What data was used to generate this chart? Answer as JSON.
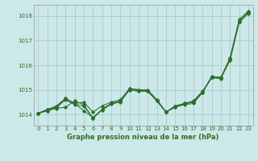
{
  "title": "Graphe pression niveau de la mer (hPa)",
  "bg_color": "#cce8e8",
  "grid_color": "#aacccc",
  "line_color": "#2d6e2d",
  "xlim": [
    -0.5,
    23.5
  ],
  "ylim": [
    1013.55,
    1018.45
  ],
  "yticks": [
    1014,
    1015,
    1016,
    1017,
    1018
  ],
  "xticks": [
    0,
    1,
    2,
    3,
    4,
    5,
    6,
    7,
    8,
    9,
    10,
    11,
    12,
    13,
    14,
    15,
    16,
    17,
    18,
    19,
    20,
    21,
    22,
    23
  ],
  "series": [
    [
      1014.05,
      1014.15,
      1014.25,
      1014.3,
      1014.55,
      1014.4,
      1013.85,
      1014.2,
      1014.45,
      1014.5,
      1015.05,
      1015.0,
      1015.0,
      1014.6,
      1014.1,
      1014.3,
      1014.4,
      1014.45,
      1014.9,
      1015.55,
      1015.5,
      1016.3,
      1017.85,
      1018.2
    ],
    [
      1014.05,
      1014.2,
      1014.3,
      1014.65,
      1014.45,
      1014.5,
      1014.1,
      1014.35,
      1014.5,
      1014.6,
      1015.05,
      1015.0,
      1014.95,
      1014.55,
      1014.1,
      1014.35,
      1014.45,
      1014.55,
      1014.95,
      1015.5,
      1015.5,
      1016.2,
      1017.75,
      1018.15
    ],
    [
      1014.05,
      1014.2,
      1014.35,
      1014.65,
      1014.45,
      1014.15,
      1013.88,
      1014.2,
      1014.45,
      1014.55,
      1015.0,
      1014.95,
      1014.95,
      1014.55,
      1014.1,
      1014.3,
      1014.45,
      1014.5,
      1014.9,
      1015.5,
      1015.45,
      1016.25,
      1017.75,
      1018.1
    ],
    [
      1014.05,
      1014.15,
      1014.28,
      1014.6,
      1014.4,
      1014.35,
      1013.85,
      1014.18,
      1014.42,
      1014.52,
      1015.0,
      1014.95,
      1014.95,
      1014.55,
      1014.1,
      1014.32,
      1014.42,
      1014.52,
      1014.9,
      1015.52,
      1015.48,
      1016.22,
      1017.78,
      1018.12
    ]
  ]
}
